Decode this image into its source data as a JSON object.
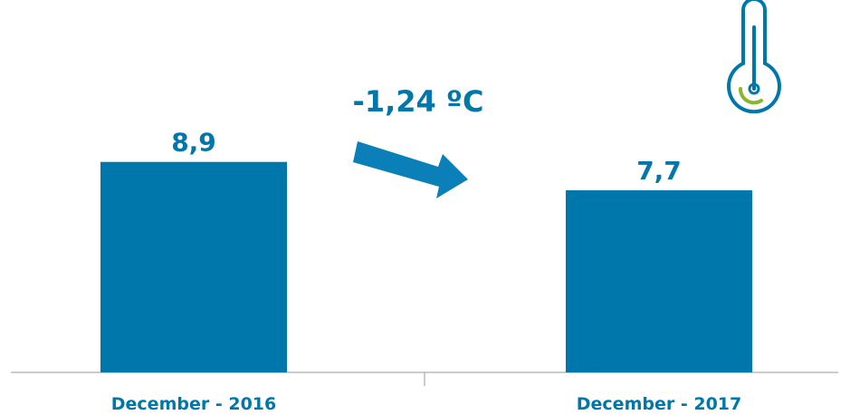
{
  "chart_data": {
    "type": "bar",
    "categories": [
      "December - 2016",
      "December - 2017"
    ],
    "values": [
      8.9,
      7.7
    ],
    "data_labels": [
      "8,9",
      "7,7"
    ],
    "ylim": [
      0,
      10
    ],
    "grid": false,
    "annotation": "-1,24 ºC",
    "bar_color": "#0077AA",
    "label_color": "#0077AA",
    "arrow_color": "#0A7FB8",
    "axis_color": "#999999",
    "thermometer_color": "#0077AA",
    "thermometer_accent": "#8DB52B"
  }
}
